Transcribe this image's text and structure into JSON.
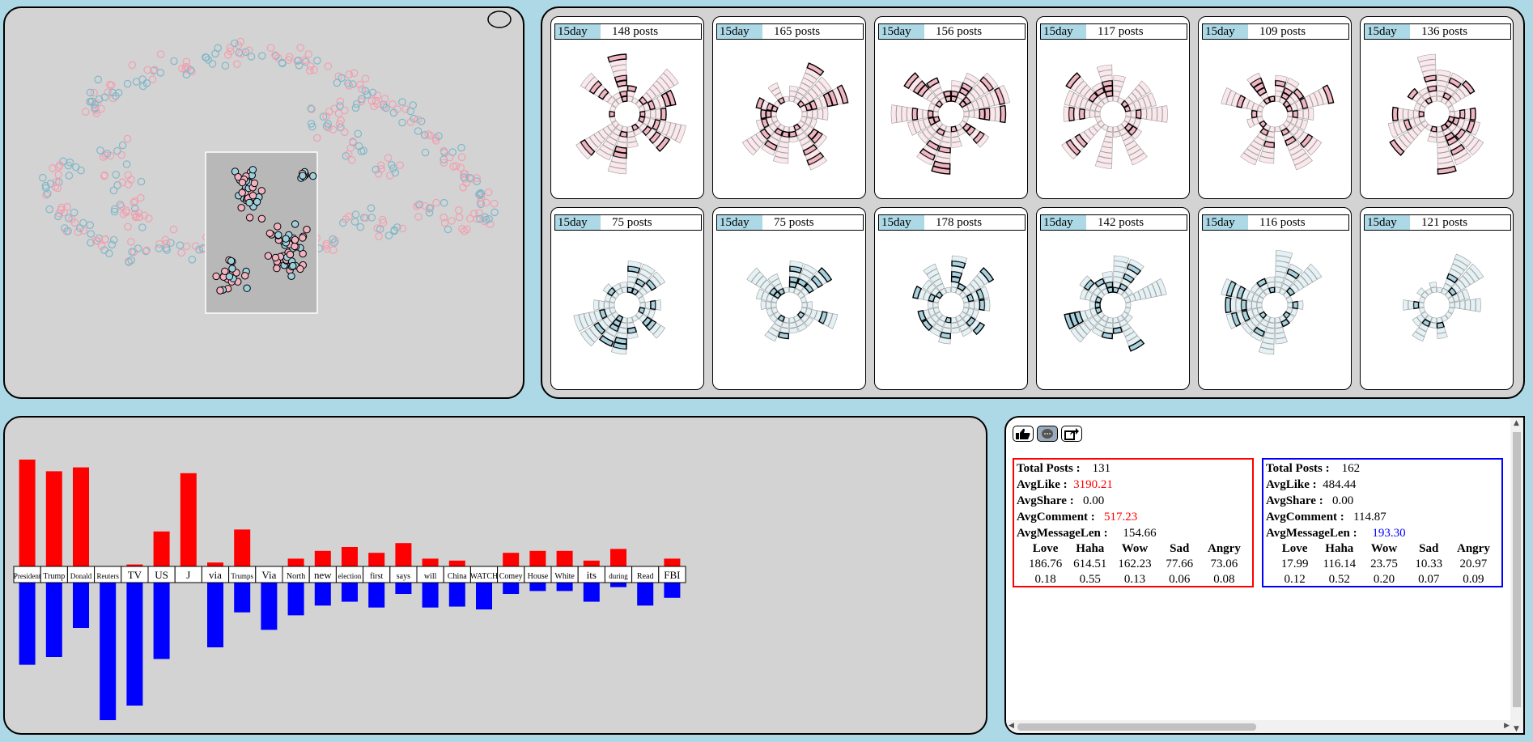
{
  "grid": {
    "cards": [
      {
        "period": "15day",
        "count": "148 posts",
        "group": "red"
      },
      {
        "period": "15day",
        "count": "165 posts",
        "group": "red"
      },
      {
        "period": "15day",
        "count": "156 posts",
        "group": "red"
      },
      {
        "period": "15day",
        "count": "117 posts",
        "group": "red"
      },
      {
        "period": "15day",
        "count": "109 posts",
        "group": "red"
      },
      {
        "period": "15day",
        "count": "136 posts",
        "group": "red"
      },
      {
        "period": "15day",
        "count": "75 posts",
        "group": "blue"
      },
      {
        "period": "15day",
        "count": "75 posts",
        "group": "blue"
      },
      {
        "period": "15day",
        "count": "178 posts",
        "group": "blue"
      },
      {
        "period": "15day",
        "count": "142 posts",
        "group": "blue"
      },
      {
        "period": "15day",
        "count": "116 posts",
        "group": "blue"
      },
      {
        "period": "15day",
        "count": "121 posts",
        "group": "blue"
      }
    ]
  },
  "words": {
    "items": [
      {
        "word": "President",
        "red": 110,
        "blue": 88
      },
      {
        "word": "Trump",
        "red": 98,
        "blue": 80
      },
      {
        "word": "Donald",
        "red": 102,
        "blue": 50
      },
      {
        "word": "Reuters",
        "red": 0,
        "blue": 145
      },
      {
        "word": "TV",
        "red": 2,
        "blue": 130
      },
      {
        "word": "US",
        "red": 36,
        "blue": 82
      },
      {
        "word": "J",
        "red": 96,
        "blue": 0
      },
      {
        "word": "via",
        "red": 4,
        "blue": 70
      },
      {
        "word": "Trumps",
        "red": 38,
        "blue": 34
      },
      {
        "word": "Via",
        "red": 0,
        "blue": 52
      },
      {
        "word": "North",
        "red": 8,
        "blue": 37
      },
      {
        "word": "new",
        "red": 16,
        "blue": 27
      },
      {
        "word": "election",
        "red": 20,
        "blue": 23
      },
      {
        "word": "first",
        "red": 14,
        "blue": 29
      },
      {
        "word": "says",
        "red": 24,
        "blue": 15
      },
      {
        "word": "will",
        "red": 8,
        "blue": 29
      },
      {
        "word": "China",
        "red": 6,
        "blue": 28
      },
      {
        "word": "WATCH",
        "red": 0,
        "blue": 31
      },
      {
        "word": "Comey",
        "red": 14,
        "blue": 15
      },
      {
        "word": "House",
        "red": 16,
        "blue": 12
      },
      {
        "word": "White",
        "red": 16,
        "blue": 12
      },
      {
        "word": "its",
        "red": 6,
        "blue": 23
      },
      {
        "word": "during",
        "red": 18,
        "blue": 8
      },
      {
        "word": "Read",
        "red": 0,
        "blue": 27
      },
      {
        "word": "FBI",
        "red": 8,
        "blue": 19
      }
    ],
    "red_color": "#ff0000",
    "blue_color": "#0000ff"
  },
  "stats": {
    "tools": [
      "thumbs-up-icon",
      "comment-icon",
      "share-icon"
    ],
    "left": {
      "total_label": "Total Posts :",
      "total": "131",
      "like_label": "AvgLike :",
      "like": "3190.21",
      "share_label": "AvgShare :",
      "share": "0.00",
      "comment_label": "AvgComment :",
      "comment": "517.23",
      "msglen_label": "AvgMessageLen :",
      "msglen": "154.66",
      "emotions": [
        "Love",
        "Haha",
        "Wow",
        "Sad",
        "Angry"
      ],
      "counts": [
        "186.76",
        "614.51",
        "162.23",
        "77.66",
        "73.06"
      ],
      "ratios": [
        "0.18",
        "0.55",
        "0.13",
        "0.06",
        "0.08"
      ],
      "border": "#ff0000"
    },
    "right": {
      "total_label": "Total Posts :",
      "total": "162",
      "like_label": "AvgLike :",
      "like": "484.44",
      "share_label": "AvgShare :",
      "share": "0.00",
      "comment_label": "AvgComment :",
      "comment": "114.87",
      "msglen_label": "AvgMessageLen :",
      "msglen": "193.30",
      "emotions": [
        "Love",
        "Haha",
        "Wow",
        "Sad",
        "Angry"
      ],
      "counts": [
        "17.99",
        "116.14",
        "23.75",
        "10.33",
        "20.97"
      ],
      "ratios": [
        "0.12",
        "0.52",
        "0.20",
        "0.07",
        "0.09"
      ],
      "border": "#0000ff"
    },
    "highlight_red": "#ff0000",
    "highlight_blue": "#0000ff"
  },
  "scatter": {
    "red_point": "#f0a0b0",
    "blue_point": "#80b8c8"
  }
}
